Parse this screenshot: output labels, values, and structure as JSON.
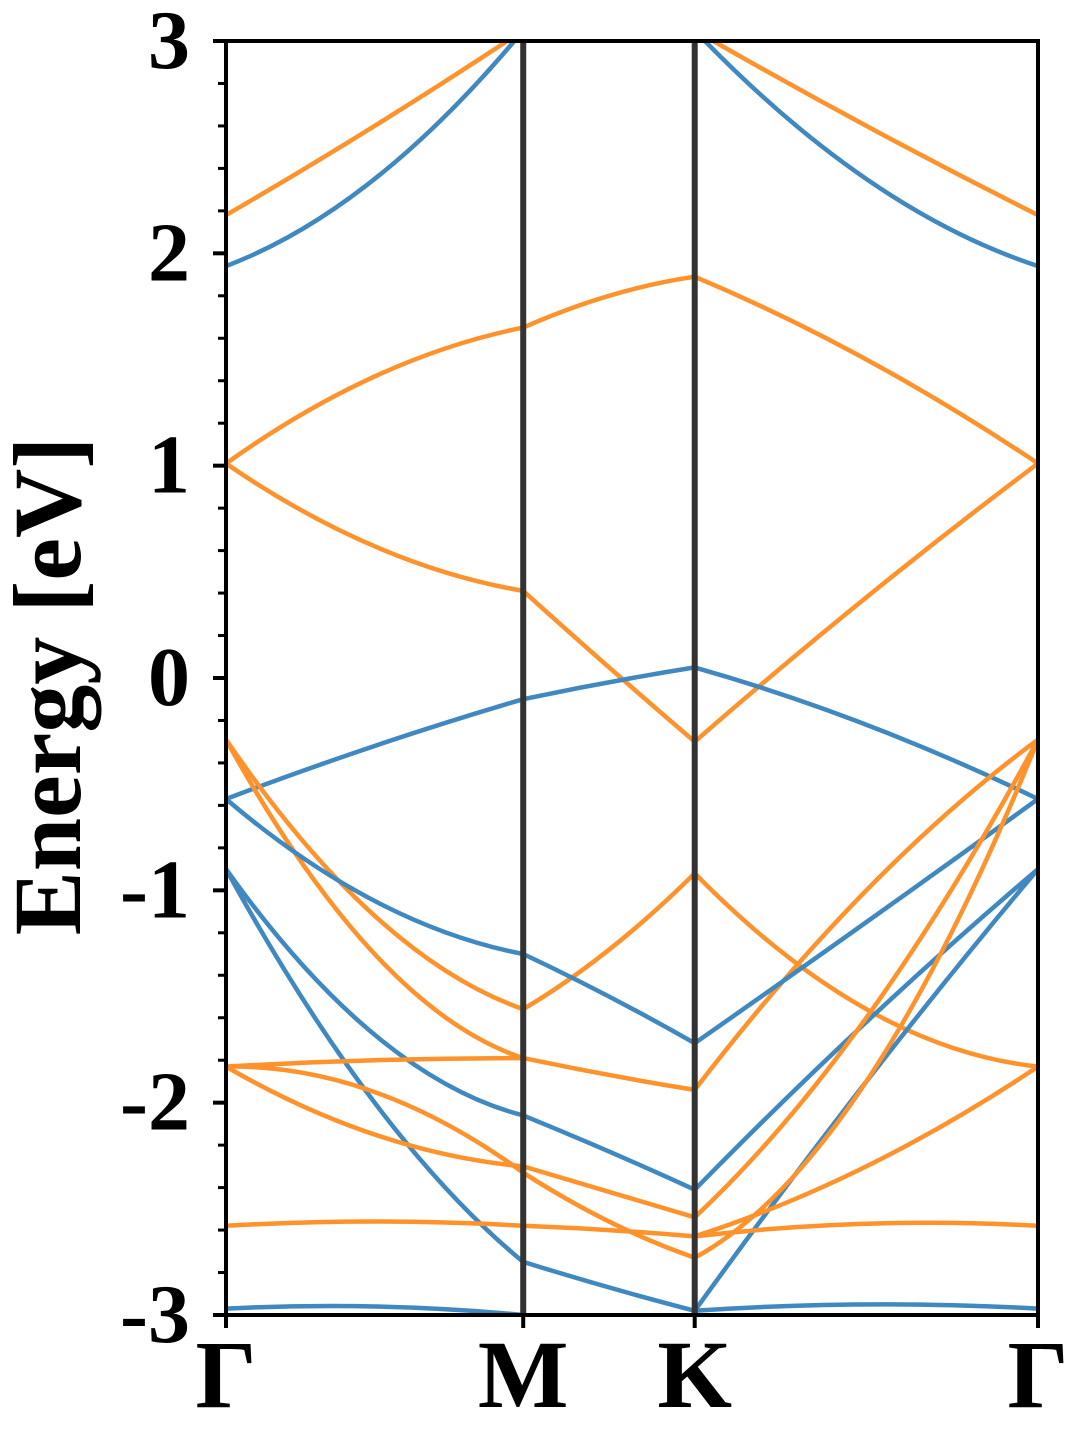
{
  "chart_data": {
    "type": "line",
    "title": "",
    "ylabel": "Energy [eV]",
    "xlabel": "",
    "ylim": [
      -3,
      3
    ],
    "yticks": [
      -3,
      -2,
      -1,
      0,
      1,
      2,
      3
    ],
    "ytick_labels": [
      "-3",
      "-2",
      "-1",
      "0",
      "1",
      "2",
      "3"
    ],
    "kpoints": [
      {
        "label": "Γ",
        "pos": 0.0
      },
      {
        "label": "M",
        "pos": 1.0
      },
      {
        "label": "K",
        "pos": 1.577
      },
      {
        "label": "Γ",
        "pos": 2.732
      }
    ],
    "colors": {
      "blue": "#3f88c0",
      "orange": "#ff922b",
      "divider": "#333333"
    },
    "series": [
      {
        "color": "blue",
        "segments": [
          [
            1.94,
            2.35,
            3.05
          ],
          null,
          [
            3.05,
            2.35,
            1.94
          ]
        ]
      },
      {
        "color": "orange",
        "segments": [
          [
            2.18,
            2.6,
            3.05
          ],
          null,
          [
            3.05,
            2.6,
            2.18
          ]
        ]
      },
      {
        "color": "orange",
        "segments": [
          [
            1.01,
            1.42,
            1.65
          ],
          [
            1.65,
            1.8,
            1.89
          ],
          [
            1.89,
            1.5,
            1.01
          ]
        ]
      },
      {
        "color": "orange",
        "segments": [
          [
            1.01,
            0.62,
            0.41
          ],
          [
            0.41,
            0.05,
            -0.3
          ],
          [
            -0.3,
            0.38,
            1.01
          ]
        ]
      },
      {
        "color": "blue",
        "segments": [
          [
            -0.57,
            -0.32,
            -0.1
          ],
          [
            -0.1,
            -0.02,
            0.05
          ],
          [
            0.05,
            -0.22,
            -0.57
          ]
        ]
      },
      {
        "color": "orange",
        "segments": [
          [
            -0.29,
            -1.12,
            -1.56
          ],
          [
            -1.56,
            -1.28,
            -0.92
          ],
          [
            -0.92,
            -1.56,
            -1.83
          ]
        ]
      },
      {
        "color": "orange",
        "segments": [
          [
            -0.29,
            -1.3,
            -1.79
          ],
          [
            -1.79,
            -1.87,
            -1.94
          ],
          [
            -1.94,
            -1.0,
            -0.29
          ]
        ]
      },
      {
        "color": "blue",
        "segments": [
          [
            -0.57,
            -1.05,
            -1.3
          ],
          [
            -1.3,
            -1.5,
            -1.72
          ],
          [
            -1.72,
            -1.15,
            -0.57
          ]
        ]
      },
      {
        "color": "blue",
        "segments": [
          [
            -0.9,
            -1.68,
            -2.06
          ],
          [
            -2.06,
            -2.23,
            -2.41
          ],
          [
            -2.41,
            -1.62,
            -0.9
          ]
        ]
      },
      {
        "color": "blue",
        "segments": [
          [
            -0.9,
            -2.0,
            -2.75
          ],
          [
            -2.75,
            -2.87,
            -2.98
          ],
          [
            -2.98,
            -1.9,
            -0.9
          ]
        ]
      },
      {
        "color": "orange",
        "segments": [
          [
            -1.83,
            -1.8,
            -1.79
          ],
          null,
          null
        ]
      },
      {
        "color": "orange",
        "segments": [
          [
            -1.83,
            -2.15,
            -2.3
          ],
          [
            -2.3,
            -2.42,
            -2.54
          ],
          [
            -2.54,
            -1.6,
            -0.29
          ]
        ]
      },
      {
        "color": "orange",
        "segments": [
          [
            -1.83,
            -1.95,
            -2.33
          ],
          [
            -2.33,
            -2.56,
            -2.73
          ],
          [
            -2.73,
            -1.9,
            -0.29
          ]
        ]
      },
      {
        "color": "orange",
        "segments": [
          null,
          null,
          [
            -2.63,
            -2.3,
            -1.83
          ]
        ]
      },
      {
        "color": "orange",
        "segments": [
          [
            -2.58,
            -2.56,
            -2.58
          ],
          [
            -2.58,
            -2.6,
            -2.63
          ],
          null
        ]
      },
      {
        "color": "orange",
        "segments": [
          null,
          null,
          [
            -2.63,
            -2.57,
            -2.58
          ]
        ]
      },
      {
        "color": "blue",
        "segments": [
          [
            -2.97,
            -2.96,
            -3.0
          ],
          null,
          [
            -2.98,
            -2.95,
            -2.97
          ]
        ]
      }
    ]
  }
}
